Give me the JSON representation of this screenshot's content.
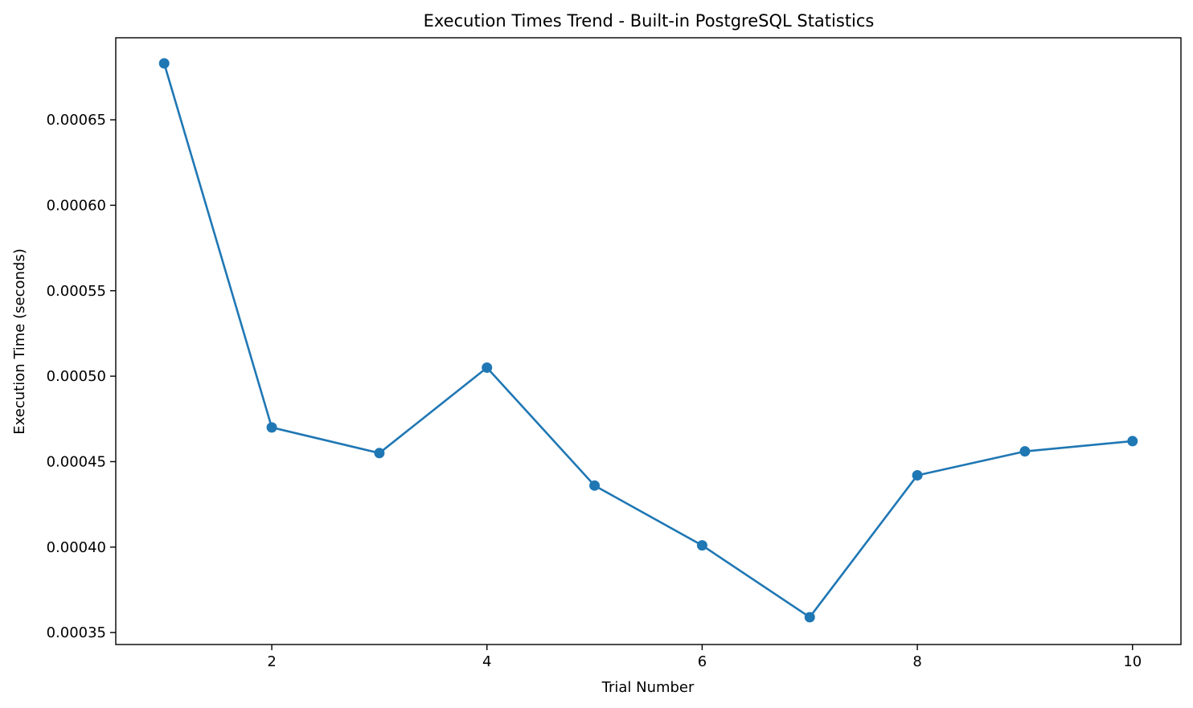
{
  "chart_data": {
    "type": "line",
    "title": "Execution Times Trend - Built-in PostgreSQL Statistics",
    "xlabel": "Trial Number",
    "ylabel": "Execution Time (seconds)",
    "x": [
      1,
      2,
      3,
      4,
      5,
      6,
      7,
      8,
      9,
      10
    ],
    "series": [
      {
        "values": [
          0.000683,
          0.00047,
          0.000455,
          0.000505,
          0.000436,
          0.000401,
          0.000359,
          0.000442,
          0.000456,
          0.000462
        ],
        "color": "#1f77b4",
        "marker": "circle"
      }
    ],
    "xlim": [
      0.55,
      10.45
    ],
    "ylim": [
      0.000343,
      0.000698
    ],
    "xticks": [
      2,
      4,
      6,
      8,
      10
    ],
    "xtick_labels": [
      "2",
      "4",
      "6",
      "8",
      "10"
    ],
    "yticks": [
      0.00035,
      0.0004,
      0.00045,
      0.0005,
      0.00055,
      0.0006,
      0.00065
    ],
    "ytick_labels": [
      "0.00035",
      "0.00040",
      "0.00045",
      "0.00050",
      "0.00055",
      "0.00060",
      "0.00065"
    ],
    "grid": false,
    "legend": "none"
  }
}
